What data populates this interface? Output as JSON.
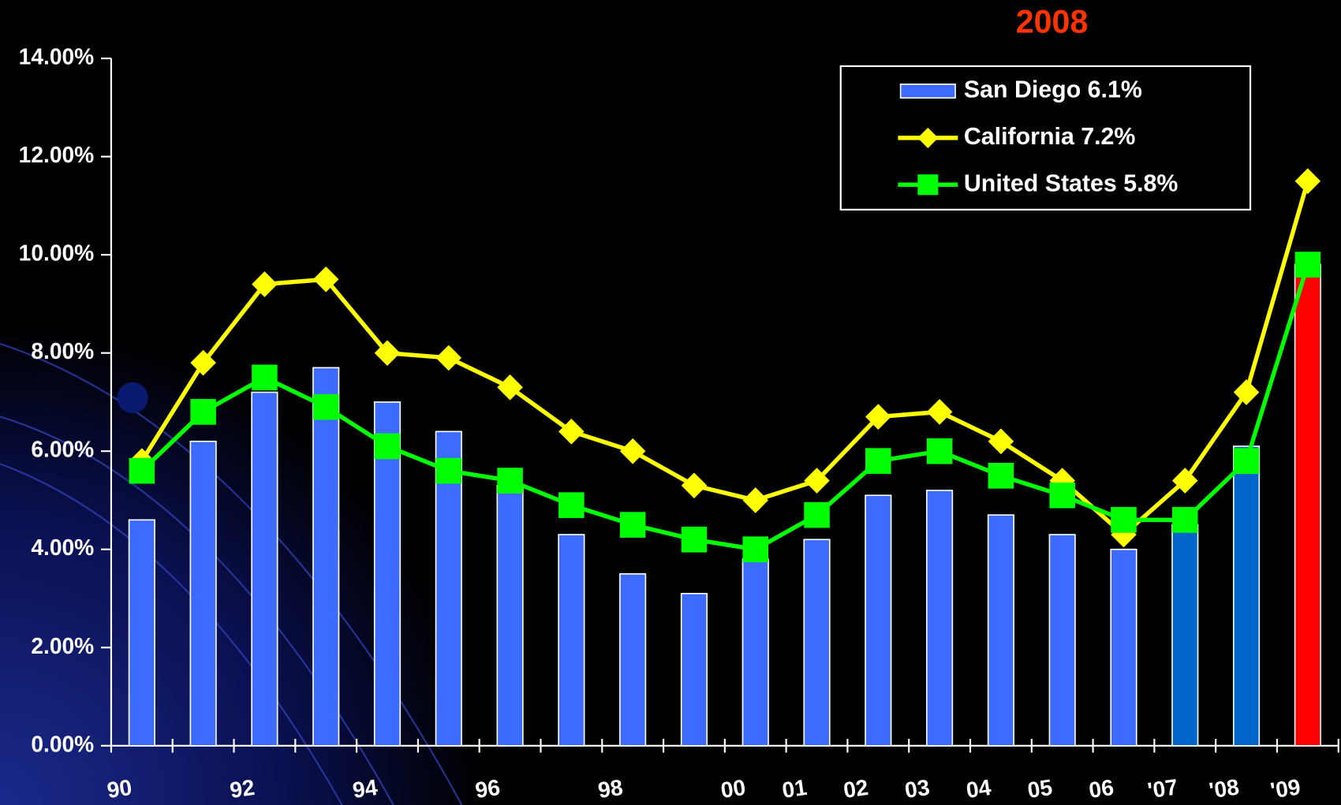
{
  "chart_data": {
    "type": "bar",
    "title": "2008",
    "categories": [
      "90",
      null,
      "92",
      null,
      "94",
      null,
      "96",
      null,
      "98",
      null,
      "00",
      "01",
      "02",
      "03",
      "04",
      "05",
      "06",
      "'07",
      "'08",
      "'09"
    ],
    "series": [
      {
        "name": "San Diego 6.1%",
        "type": "bar",
        "color": "#3d6bff",
        "colors": [
          "#3d6bff",
          "#3d6bff",
          "#3d6bff",
          "#3d6bff",
          "#3d6bff",
          "#3d6bff",
          "#3d6bff",
          "#3d6bff",
          "#3d6bff",
          "#3d6bff",
          "#3d6bff",
          "#3d6bff",
          "#3d6bff",
          "#3d6bff",
          "#3d6bff",
          "#3d6bff",
          "#3d6bff",
          "#0066cc",
          "#0066cc",
          "#ff0000"
        ],
        "values": [
          4.6,
          6.2,
          7.2,
          7.7,
          7.0,
          6.4,
          5.3,
          4.3,
          3.5,
          3.1,
          3.8,
          4.2,
          5.1,
          5.2,
          4.7,
          4.3,
          4.0,
          4.5,
          6.1,
          9.8
        ]
      },
      {
        "name": "California 7.2%",
        "type": "line",
        "marker": "diamond",
        "color": "#ffff00",
        "values": [
          5.8,
          7.8,
          9.4,
          9.5,
          8.0,
          7.9,
          7.3,
          6.4,
          6.0,
          5.3,
          5.0,
          5.4,
          6.7,
          6.8,
          6.2,
          5.4,
          4.3,
          5.4,
          7.2,
          11.5
        ]
      },
      {
        "name": "United States 5.8%",
        "type": "line",
        "marker": "square",
        "color": "#00ff00",
        "values": [
          5.6,
          6.8,
          7.5,
          6.9,
          6.1,
          5.6,
          5.4,
          4.9,
          4.5,
          4.2,
          4.0,
          4.7,
          5.8,
          6.0,
          5.5,
          5.1,
          4.6,
          4.6,
          5.8,
          9.8
        ]
      }
    ],
    "ylim": [
      0,
      14
    ],
    "yticks": [
      {
        "value": 0,
        "label": "0.00%"
      },
      {
        "value": 2,
        "label": "2.00%"
      },
      {
        "value": 4,
        "label": "4.00%"
      },
      {
        "value": 6,
        "label": "6.00%"
      },
      {
        "value": 8,
        "label": "8.00%"
      },
      {
        "value": 10,
        "label": "10.00%"
      },
      {
        "value": 12,
        "label": "12.00%"
      },
      {
        "value": 14,
        "label": "14.00%"
      }
    ],
    "legend": "top-right"
  }
}
